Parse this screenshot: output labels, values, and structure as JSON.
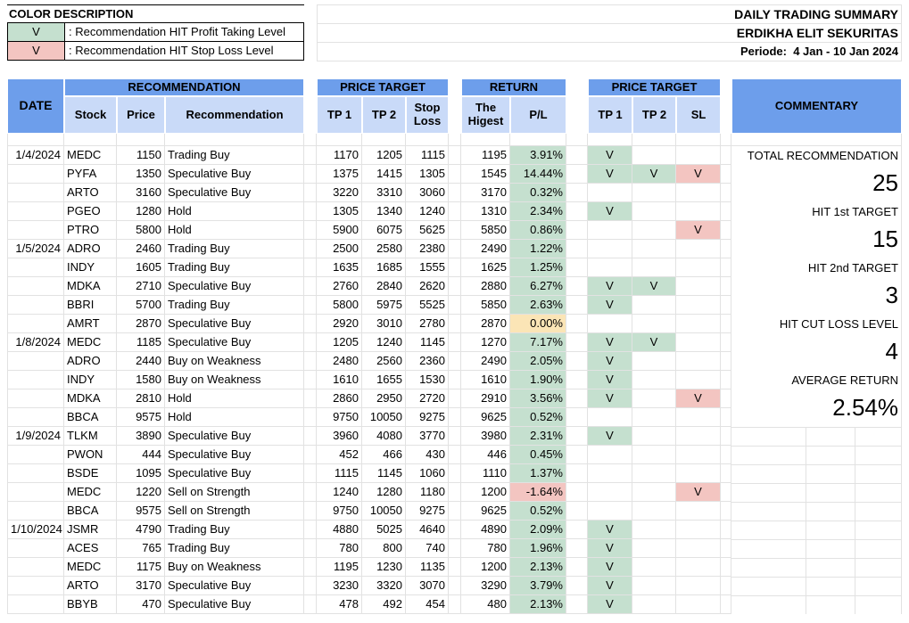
{
  "colors": {
    "header_blue": "#6d9eeb",
    "subheader_blue": "#c9daf8",
    "hit_green": "#c5e0cf",
    "hit_red": "#f3c5c1",
    "neutral_yellow": "#fbe5b6"
  },
  "legend": {
    "title": "COLOR DESCRIPTION",
    "items": [
      {
        "symbol": "V",
        "description": ": Recommendation HIT Profit Taking Level"
      },
      {
        "symbol": "V",
        "description": ": Recommendation HIT Stop Loss Level"
      }
    ]
  },
  "report": {
    "title": "DAILY TRADING SUMMARY",
    "company": "ERDIKHA ELIT SEKURITAS",
    "period": "Periode:  4 Jan - 10 Jan 2024"
  },
  "table": {
    "headers": {
      "date": "DATE",
      "recommendation_group": "RECOMMENDATION",
      "stock": "Stock",
      "price": "Price",
      "recommendation": "Recommendation",
      "price_target_group": "PRICE TARGET",
      "tp1": "TP 1",
      "tp2": "TP 2",
      "stop_loss": "Stop Loss",
      "return_group": "RETURN",
      "highest": "The Higest",
      "pl": "P/L",
      "price_target2_group": "PRICE TARGET",
      "tp1b": "TP 1",
      "tp2b": "TP 2",
      "sl": "SL",
      "commentary": "COMMENTARY"
    },
    "rows": [
      {
        "date": "1/4/2024",
        "stock": "MEDC",
        "price": "1150",
        "rec": "Trading Buy",
        "tp1": "1170",
        "tp2": "1205",
        "sl": "1115",
        "hi": "1195",
        "pl": "3.91%",
        "pl_bg": "green",
        "vtp1": "V",
        "vtp1_bg": "green",
        "vtp2": "",
        "vsl": ""
      },
      {
        "date": "",
        "stock": "PYFA",
        "price": "1350",
        "rec": "Speculative Buy",
        "tp1": "1375",
        "tp2": "1415",
        "sl": "1305",
        "hi": "1545",
        "pl": "14.44%",
        "pl_bg": "green",
        "vtp1": "V",
        "vtp1_bg": "green",
        "vtp2": "V",
        "vtp2_bg": "green",
        "vsl": "V",
        "vsl_bg": "red"
      },
      {
        "date": "",
        "stock": "ARTO",
        "price": "3160",
        "rec": "Speculative Buy",
        "tp1": "3220",
        "tp2": "3310",
        "sl": "3060",
        "hi": "3170",
        "pl": "0.32%",
        "pl_bg": "green",
        "vtp1": "",
        "vtp2": "",
        "vsl": ""
      },
      {
        "date": "",
        "stock": "PGEO",
        "price": "1280",
        "rec": "Hold",
        "tp1": "1305",
        "tp2": "1340",
        "sl": "1240",
        "hi": "1310",
        "pl": "2.34%",
        "pl_bg": "green",
        "vtp1": "V",
        "vtp1_bg": "green",
        "vtp2": "",
        "vsl": ""
      },
      {
        "date": "",
        "stock": "PTRO",
        "price": "5800",
        "rec": "Hold",
        "tp1": "5900",
        "tp2": "6075",
        "sl": "5625",
        "hi": "5850",
        "pl": "0.86%",
        "pl_bg": "green",
        "vtp1": "",
        "vtp2": "",
        "vsl": "V",
        "vsl_bg": "red"
      },
      {
        "date": "1/5/2024",
        "stock": "ADRO",
        "price": "2460",
        "rec": "Trading Buy",
        "tp1": "2500",
        "tp2": "2580",
        "sl": "2380",
        "hi": "2490",
        "pl": "1.22%",
        "pl_bg": "green",
        "vtp1": "",
        "vtp2": "",
        "vsl": ""
      },
      {
        "date": "",
        "stock": "INDY",
        "price": "1605",
        "rec": "Trading Buy",
        "tp1": "1635",
        "tp2": "1685",
        "sl": "1555",
        "hi": "1625",
        "pl": "1.25%",
        "pl_bg": "green",
        "vtp1": "",
        "vtp2": "",
        "vsl": ""
      },
      {
        "date": "",
        "stock": "MDKA",
        "price": "2710",
        "rec": "Speculative Buy",
        "tp1": "2760",
        "tp2": "2840",
        "sl": "2620",
        "hi": "2880",
        "pl": "6.27%",
        "pl_bg": "green",
        "vtp1": "V",
        "vtp1_bg": "green",
        "vtp2": "V",
        "vtp2_bg": "green",
        "vsl": ""
      },
      {
        "date": "",
        "stock": "BBRI",
        "price": "5700",
        "rec": "Trading Buy",
        "tp1": "5800",
        "tp2": "5975",
        "sl": "5525",
        "hi": "5850",
        "pl": "2.63%",
        "pl_bg": "green",
        "vtp1": "V",
        "vtp1_bg": "green",
        "vtp2": "",
        "vsl": ""
      },
      {
        "date": "",
        "stock": "AMRT",
        "price": "2870",
        "rec": "Speculative Buy",
        "tp1": "2920",
        "tp2": "3010",
        "sl": "2780",
        "hi": "2870",
        "pl": "0.00%",
        "pl_bg": "yellow",
        "vtp1": "",
        "vtp2": "",
        "vsl": ""
      },
      {
        "date": "1/8/2024",
        "stock": "MEDC",
        "price": "1185",
        "rec": "Speculative Buy",
        "tp1": "1205",
        "tp2": "1240",
        "sl": "1145",
        "hi": "1270",
        "pl": "7.17%",
        "pl_bg": "green",
        "vtp1": "V",
        "vtp1_bg": "green",
        "vtp2": "V",
        "vtp2_bg": "green",
        "vsl": ""
      },
      {
        "date": "",
        "stock": "ADRO",
        "price": "2440",
        "rec": "Buy on Weakness",
        "tp1": "2480",
        "tp2": "2560",
        "sl": "2360",
        "hi": "2490",
        "pl": "2.05%",
        "pl_bg": "green",
        "vtp1": "V",
        "vtp1_bg": "green",
        "vtp2": "",
        "vsl": ""
      },
      {
        "date": "",
        "stock": "INDY",
        "price": "1580",
        "rec": "Buy on Weakness",
        "tp1": "1610",
        "tp2": "1655",
        "sl": "1530",
        "hi": "1610",
        "pl": "1.90%",
        "pl_bg": "green",
        "vtp1": "V",
        "vtp1_bg": "green",
        "vtp2": "",
        "vsl": ""
      },
      {
        "date": "",
        "stock": "MDKA",
        "price": "2810",
        "rec": "Hold",
        "tp1": "2860",
        "tp2": "2950",
        "sl": "2720",
        "hi": "2910",
        "pl": "3.56%",
        "pl_bg": "green",
        "vtp1": "V",
        "vtp1_bg": "green",
        "vtp2": "",
        "vsl": "V",
        "vsl_bg": "red"
      },
      {
        "date": "",
        "stock": "BBCA",
        "price": "9575",
        "rec": "Hold",
        "tp1": "9750",
        "tp2": "10050",
        "sl": "9275",
        "hi": "9625",
        "pl": "0.52%",
        "pl_bg": "green",
        "vtp1": "",
        "vtp2": "",
        "vsl": ""
      },
      {
        "date": "1/9/2024",
        "stock": "TLKM",
        "price": "3890",
        "rec": "Speculative Buy",
        "tp1": "3960",
        "tp2": "4080",
        "sl": "3770",
        "hi": "3980",
        "pl": "2.31%",
        "pl_bg": "green",
        "vtp1": "V",
        "vtp1_bg": "green",
        "vtp2": "",
        "vsl": ""
      },
      {
        "date": "",
        "stock": "PWON",
        "price": "444",
        "rec": "Speculative Buy",
        "tp1": "452",
        "tp2": "466",
        "sl": "430",
        "hi": "446",
        "pl": "0.45%",
        "pl_bg": "green",
        "vtp1": "",
        "vtp2": "",
        "vsl": ""
      },
      {
        "date": "",
        "stock": "BSDE",
        "price": "1095",
        "rec": "Speculative Buy",
        "tp1": "1115",
        "tp2": "1145",
        "sl": "1060",
        "hi": "1110",
        "pl": "1.37%",
        "pl_bg": "green",
        "vtp1": "",
        "vtp2": "",
        "vsl": ""
      },
      {
        "date": "",
        "stock": "MEDC",
        "price": "1220",
        "rec": "Sell on Strength",
        "tp1": "1240",
        "tp2": "1280",
        "sl": "1180",
        "hi": "1200",
        "pl": "-1.64%",
        "pl_bg": "red",
        "vtp1": "",
        "vtp2": "",
        "vsl": "V",
        "vsl_bg": "red"
      },
      {
        "date": "",
        "stock": "BBCA",
        "price": "9575",
        "rec": "Sell on Strength",
        "tp1": "9750",
        "tp2": "10050",
        "sl": "9275",
        "hi": "9625",
        "pl": "0.52%",
        "pl_bg": "green",
        "vtp1": "",
        "vtp2": "",
        "vsl": ""
      },
      {
        "date": "1/10/2024",
        "stock": "JSMR",
        "price": "4790",
        "rec": "Trading Buy",
        "tp1": "4880",
        "tp2": "5025",
        "sl": "4640",
        "hi": "4890",
        "pl": "2.09%",
        "pl_bg": "green",
        "vtp1": "V",
        "vtp1_bg": "green",
        "vtp2": "",
        "vsl": ""
      },
      {
        "date": "",
        "stock": "ACES",
        "price": "765",
        "rec": "Trading Buy",
        "tp1": "780",
        "tp2": "800",
        "sl": "740",
        "hi": "780",
        "pl": "1.96%",
        "pl_bg": "green",
        "vtp1": "V",
        "vtp1_bg": "green",
        "vtp2": "",
        "vsl": ""
      },
      {
        "date": "",
        "stock": "MEDC",
        "price": "1175",
        "rec": "Buy on Weakness",
        "tp1": "1195",
        "tp2": "1230",
        "sl": "1135",
        "hi": "1200",
        "pl": "2.13%",
        "pl_bg": "green",
        "vtp1": "V",
        "vtp1_bg": "green",
        "vtp2": "",
        "vsl": ""
      },
      {
        "date": "",
        "stock": "ARTO",
        "price": "3170",
        "rec": "Speculative Buy",
        "tp1": "3230",
        "tp2": "3320",
        "sl": "3070",
        "hi": "3290",
        "pl": "3.79%",
        "pl_bg": "green",
        "vtp1": "V",
        "vtp1_bg": "green",
        "vtp2": "",
        "vsl": ""
      },
      {
        "date": "",
        "stock": "BBYB",
        "price": "470",
        "rec": "Speculative Buy",
        "tp1": "478",
        "tp2": "492",
        "sl": "454",
        "hi": "480",
        "pl": "2.13%",
        "pl_bg": "green",
        "vtp1": "V",
        "vtp1_bg": "green",
        "vtp2": "",
        "vsl": ""
      }
    ]
  },
  "commentary": {
    "items": [
      {
        "label": "TOTAL RECOMMENDATION",
        "value": "25"
      },
      {
        "label": "HIT 1st TARGET",
        "value": "15"
      },
      {
        "label": "HIT 2nd TARGET",
        "value": "3"
      },
      {
        "label": "HIT CUT LOSS LEVEL",
        "value": "4"
      },
      {
        "label": "AVERAGE RETURN",
        "value": "2.54%"
      }
    ]
  }
}
